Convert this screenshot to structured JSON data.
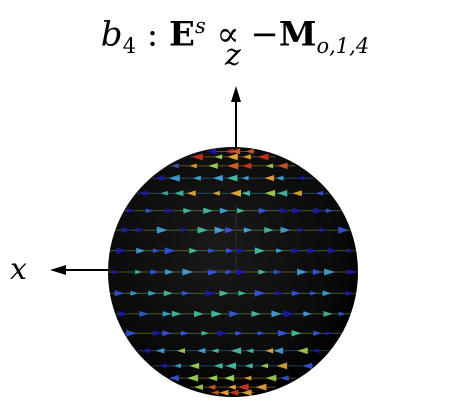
{
  "title": {
    "b": "b",
    "b_sub": "4",
    "colon": " : ",
    "E": "E",
    "E_sup": "s",
    "prop": " ∝ −",
    "M": "M",
    "M_sub": "o,1,4"
  },
  "axes": {
    "z_label": "z",
    "x_label": "x"
  },
  "colors": {
    "sphere": "#0b0b0b",
    "axis": "#000000",
    "palette": [
      "#1a1aa8",
      "#3355dd",
      "#3f9fd8",
      "#44b89a",
      "#9ccf55",
      "#e0a43a",
      "#d45a2a",
      "#c8321e"
    ]
  }
}
